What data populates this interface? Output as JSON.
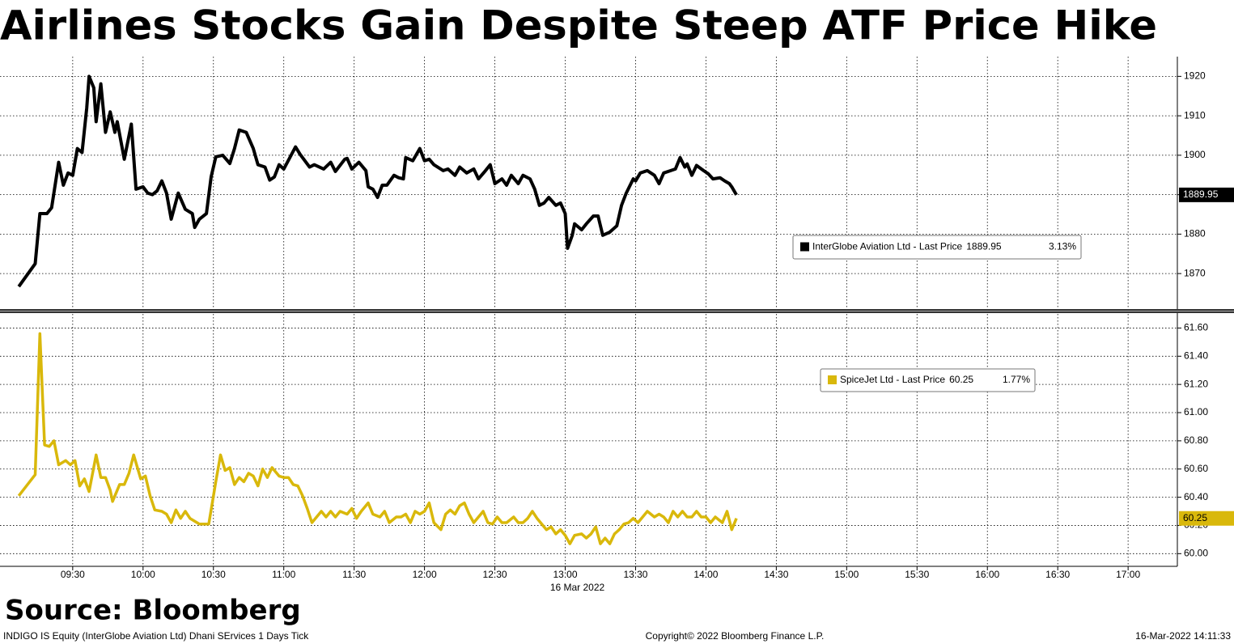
{
  "title": "Airlines Stocks Gain Despite Steep ATF Price Hike",
  "source": "Source: Bloomberg",
  "footer": {
    "left": "INDIGO IS Equity (InterGlobe Aviation Ltd) Dhani SErvices 1 Days  Tick",
    "center": "Copyright© 2022 Bloomberg Finance L.P.",
    "right": "16-Mar-2022 14:11:33"
  },
  "chart_data": [
    {
      "type": "line",
      "x": [
        "09:07",
        "09:14",
        "09:16",
        "09:19",
        "09:21",
        "09:24",
        "09:26",
        "09:28",
        "09:30",
        "09:32",
        "09:34",
        "09:36",
        "09:37",
        "09:39",
        "09:40",
        "09:42",
        "09:44",
        "09:46",
        "09:48",
        "09:49",
        "09:52",
        "09:55",
        "09:57",
        "10:00",
        "10:02",
        "10:04",
        "10:06",
        "10:08",
        "10:10",
        "10:12",
        "10:15",
        "10:18",
        "10:21",
        "10:22",
        "10:24",
        "10:27",
        "10:29",
        "10:31",
        "10:34",
        "10:37",
        "10:39",
        "10:41",
        "10:44",
        "10:47",
        "10:49",
        "10:52",
        "10:54",
        "10:56",
        "10:58",
        "11:00",
        "11:05",
        "11:07",
        "11:11",
        "11:13",
        "11:17",
        "11:20",
        "11:22",
        "11:26",
        "11:27",
        "11:29",
        "11:32",
        "11:35",
        "11:36",
        "11:38",
        "11:40",
        "11:42",
        "11:44",
        "11:47",
        "11:49",
        "11:51",
        "11:52",
        "11:55",
        "11:58",
        "12:00",
        "12:02",
        "12:04",
        "12:08",
        "12:10",
        "12:13",
        "12:15",
        "12:18",
        "12:21",
        "12:23",
        "12:26",
        "12:28",
        "12:30",
        "12:33",
        "12:35",
        "12:37",
        "12:40",
        "12:42",
        "12:45",
        "12:47",
        "12:49",
        "12:51",
        "12:53",
        "12:56",
        "12:58",
        "13:00",
        "13:01",
        "13:03",
        "13:04",
        "13:07",
        "13:09",
        "13:12",
        "13:14",
        "13:16",
        "13:19",
        "13:22",
        "13:24",
        "13:26",
        "13:29",
        "13:30",
        "13:32",
        "13:35",
        "13:38",
        "13:40",
        "13:42",
        "13:45",
        "13:47",
        "13:49",
        "13:51",
        "13:52",
        "13:54",
        "13:56",
        "13:59",
        "14:01",
        "14:03",
        "14:06",
        "14:08",
        "14:10",
        "14:11",
        "14:13"
      ],
      "series": [
        {
          "name": "InterGlobe Aviation Ltd - Last Price",
          "color": "#000000",
          "change": "3.13%",
          "values": [
            1866.7,
            1872.5,
            1885.2,
            1885.2,
            1886.7,
            1898.2,
            1892.4,
            1895.5,
            1894.9,
            1901.7,
            1900.7,
            1912.0,
            1920.0,
            1917.1,
            1908.5,
            1918.1,
            1905.8,
            1911.0,
            1905.8,
            1908.5,
            1899.0,
            1907.9,
            1891.4,
            1892.0,
            1890.4,
            1890.0,
            1891.0,
            1893.5,
            1890.4,
            1883.8,
            1890.4,
            1886.3,
            1885.2,
            1881.7,
            1883.8,
            1885.2,
            1894.5,
            1899.6,
            1900.0,
            1897.9,
            1901.7,
            1906.4,
            1905.8,
            1901.7,
            1897.6,
            1897.0,
            1893.7,
            1894.5,
            1897.6,
            1896.5,
            1902.1,
            1900.2,
            1897.0,
            1897.6,
            1896.5,
            1898.2,
            1895.9,
            1899.0,
            1899.2,
            1896.5,
            1898.2,
            1896.1,
            1892.0,
            1891.4,
            1889.3,
            1892.4,
            1892.4,
            1894.9,
            1894.3,
            1894.0,
            1899.4,
            1898.6,
            1901.7,
            1898.6,
            1899.0,
            1897.6,
            1896.1,
            1896.5,
            1894.9,
            1897.0,
            1895.5,
            1896.5,
            1894.0,
            1896.1,
            1897.6,
            1892.8,
            1894.0,
            1892.4,
            1894.9,
            1892.8,
            1894.9,
            1894.0,
            1891.4,
            1887.3,
            1887.9,
            1889.3,
            1887.3,
            1887.9,
            1885.2,
            1876.4,
            1879.7,
            1882.6,
            1881.1,
            1882.6,
            1884.6,
            1884.6,
            1879.7,
            1880.5,
            1882.1,
            1887.3,
            1890.4,
            1894.0,
            1893.5,
            1895.5,
            1896.1,
            1894.9,
            1892.8,
            1895.5,
            1896.1,
            1896.5,
            1899.4,
            1897.0,
            1897.8,
            1894.9,
            1897.4,
            1896.1,
            1895.3,
            1894.0,
            1894.3,
            1893.5,
            1892.8,
            1892.0,
            1889.95
          ]
        }
      ],
      "ylim": [
        1861,
        1925
      ],
      "yticks": [
        1870,
        1880,
        1890,
        1900,
        1910,
        1920
      ],
      "grid": true
    },
    {
      "type": "line",
      "x": [
        "09:07",
        "09:14",
        "09:16",
        "09:18",
        "09:20",
        "09:22",
        "09:24",
        "09:27",
        "09:29",
        "09:31",
        "09:33",
        "09:35",
        "09:37",
        "09:40",
        "09:42",
        "09:44",
        "09:46",
        "09:47",
        "09:50",
        "09:52",
        "09:54",
        "09:56",
        "09:59",
        "10:01",
        "10:03",
        "10:05",
        "10:08",
        "10:10",
        "10:12",
        "10:14",
        "10:16",
        "10:18",
        "10:20",
        "10:24",
        "10:28",
        "10:29",
        "10:31",
        "10:33",
        "10:35",
        "10:37",
        "10:39",
        "10:41",
        "10:43",
        "10:45",
        "10:47",
        "10:49",
        "10:51",
        "10:53",
        "10:55",
        "10:58",
        "11:00",
        "11:02",
        "11:04",
        "11:06",
        "11:08",
        "11:10",
        "11:12",
        "11:14",
        "11:16",
        "11:18",
        "11:20",
        "11:22",
        "11:24",
        "11:27",
        "11:29",
        "11:31",
        "11:33",
        "11:36",
        "11:38",
        "11:41",
        "11:43",
        "11:45",
        "11:48",
        "11:50",
        "11:52",
        "11:54",
        "11:56",
        "11:58",
        "12:00",
        "12:02",
        "12:04",
        "12:07",
        "12:09",
        "12:11",
        "12:13",
        "12:15",
        "12:17",
        "12:19",
        "12:21",
        "12:23",
        "12:25",
        "12:27",
        "12:29",
        "12:31",
        "12:33",
        "12:35",
        "12:38",
        "12:40",
        "12:42",
        "12:44",
        "12:46",
        "12:48",
        "12:50",
        "12:52",
        "12:54",
        "12:56",
        "12:58",
        "13:00",
        "13:02",
        "13:04",
        "13:07",
        "13:09",
        "13:11",
        "13:13",
        "13:15",
        "13:17",
        "13:19",
        "13:21",
        "13:23",
        "13:25",
        "13:27",
        "13:29",
        "13:31",
        "13:33",
        "13:35",
        "13:38",
        "13:40",
        "13:42",
        "13:44",
        "13:46",
        "13:48",
        "13:50",
        "13:52",
        "13:54",
        "13:56",
        "13:58",
        "14:00",
        "14:02",
        "14:04",
        "14:07",
        "14:09",
        "14:11",
        "14:13"
      ],
      "series": [
        {
          "name": "SpiceJet Ltd - Last Price",
          "color": "#d9b80b",
          "change": "1.77%",
          "values": [
            60.41,
            60.56,
            61.56,
            60.77,
            60.76,
            60.8,
            60.63,
            60.66,
            60.63,
            60.66,
            60.48,
            60.53,
            60.44,
            60.7,
            60.54,
            60.54,
            60.45,
            60.37,
            60.49,
            60.49,
            60.57,
            60.7,
            60.53,
            60.55,
            60.41,
            60.31,
            60.3,
            60.28,
            60.22,
            60.31,
            60.25,
            60.3,
            60.25,
            60.21,
            60.21,
            60.31,
            60.51,
            60.7,
            60.59,
            60.61,
            60.49,
            60.54,
            60.51,
            60.57,
            60.55,
            60.48,
            60.6,
            60.54,
            60.61,
            60.55,
            60.54,
            60.54,
            60.49,
            60.48,
            60.41,
            60.32,
            60.22,
            60.26,
            60.3,
            60.26,
            60.3,
            60.26,
            60.3,
            60.28,
            60.32,
            60.25,
            60.3,
            60.36,
            60.28,
            60.26,
            60.3,
            60.22,
            60.26,
            60.26,
            60.28,
            60.22,
            60.3,
            60.28,
            60.3,
            60.36,
            60.22,
            60.17,
            60.28,
            60.31,
            60.28,
            60.34,
            60.36,
            60.28,
            60.22,
            60.26,
            60.3,
            60.22,
            60.21,
            60.26,
            60.22,
            60.22,
            60.26,
            60.22,
            60.22,
            60.25,
            60.3,
            60.25,
            60.21,
            60.17,
            60.19,
            60.14,
            60.17,
            60.13,
            60.07,
            60.13,
            60.14,
            60.11,
            60.14,
            60.19,
            60.07,
            60.11,
            60.07,
            60.14,
            60.17,
            60.21,
            60.22,
            60.25,
            60.22,
            60.26,
            60.3,
            60.26,
            60.28,
            60.26,
            60.22,
            60.3,
            60.26,
            60.3,
            60.26,
            60.26,
            60.3,
            60.26,
            60.26,
            60.22,
            60.26,
            60.22,
            60.3,
            60.17,
            60.25
          ]
        }
      ],
      "ylim": [
        59.91,
        61.7
      ],
      "yticks": [
        {
          "value": 60,
          "label": "60.00"
        },
        {
          "value": 60.2,
          "label": "60.20"
        },
        {
          "value": 60.4,
          "label": "60.40"
        },
        {
          "value": 60.6,
          "label": "60.60"
        },
        {
          "value": 60.8,
          "label": "60.80"
        },
        {
          "value": 61,
          "label": "61.00"
        },
        {
          "value": 61.2,
          "label": "61.20"
        },
        {
          "value": 61.4,
          "label": "61.40"
        },
        {
          "value": 61.6,
          "label": "61.60"
        }
      ],
      "grid": true,
      "xlim": [
        "08:59",
        "17:21"
      ],
      "xticks": [
        "09:30",
        "10:00",
        "10:30",
        "11:00",
        "11:30",
        "12:00",
        "12:30",
        "13:00",
        "13:30",
        "14:00",
        "14:30",
        "15:00",
        "15:30",
        "16:00",
        "16:30",
        "17:00"
      ],
      "x_label": "16 Mar 2022"
    }
  ]
}
